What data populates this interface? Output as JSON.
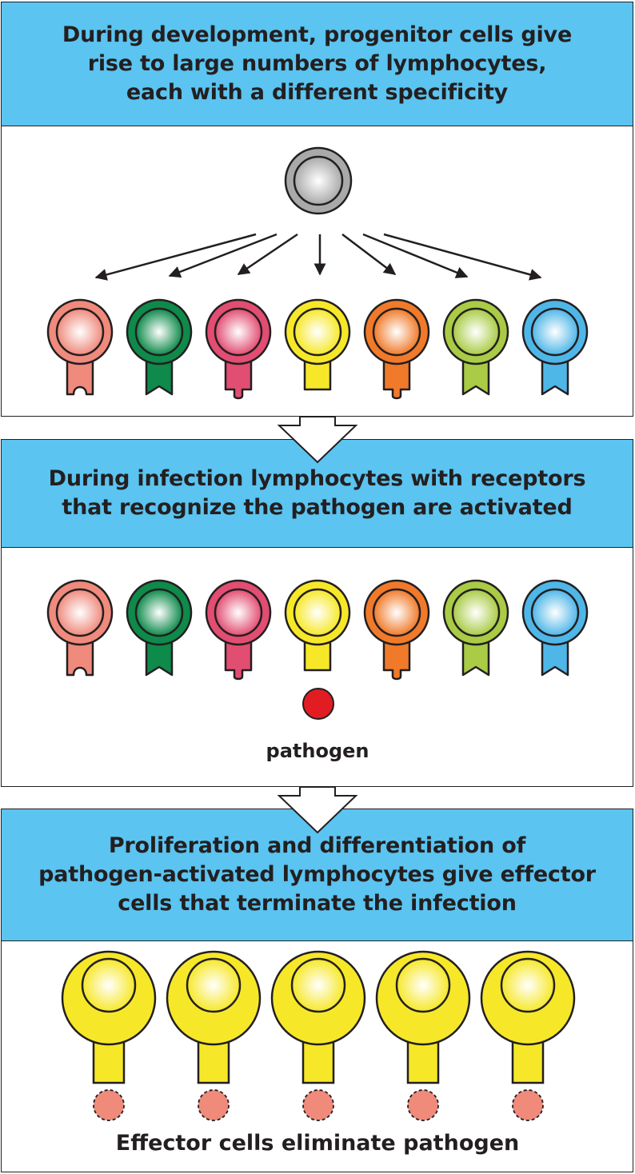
{
  "step1": {
    "lines": [
      "During development, progenitor cells give",
      "rise to large numbers of lymphocytes,",
      "each with a different specificity"
    ]
  },
  "step2": {
    "lines": [
      "During infection lymphocytes with receptors",
      "that recognize the pathogen are activated"
    ],
    "pathogen_label": "pathogen"
  },
  "step3": {
    "lines": [
      "Proliferation and differentiation of",
      "pathogen-activated lymphocytes give effector",
      "cells that terminate the infection"
    ],
    "effector_label": "Effector cells eliminate pathogen"
  },
  "colors": {
    "header_bg": "#5bc4f1",
    "outline": "#231f20",
    "pathogen": "#e21c23",
    "eliminated_pathogen": "#f08a7a",
    "progenitor": "#a9a9a9"
  },
  "lymphocytes": [
    {
      "color": "#ef8a7c",
      "receptor": "notch"
    },
    {
      "color": "#0e8a4a",
      "receptor": "v-notch"
    },
    {
      "color": "#e24d72",
      "receptor": "bump"
    },
    {
      "color": "#f6e829",
      "receptor": "flat"
    },
    {
      "color": "#f07a2a",
      "receptor": "bump"
    },
    {
      "color": "#a9cb45",
      "receptor": "v-notch"
    },
    {
      "color": "#4fb6e8",
      "receptor": "v-notch"
    }
  ]
}
